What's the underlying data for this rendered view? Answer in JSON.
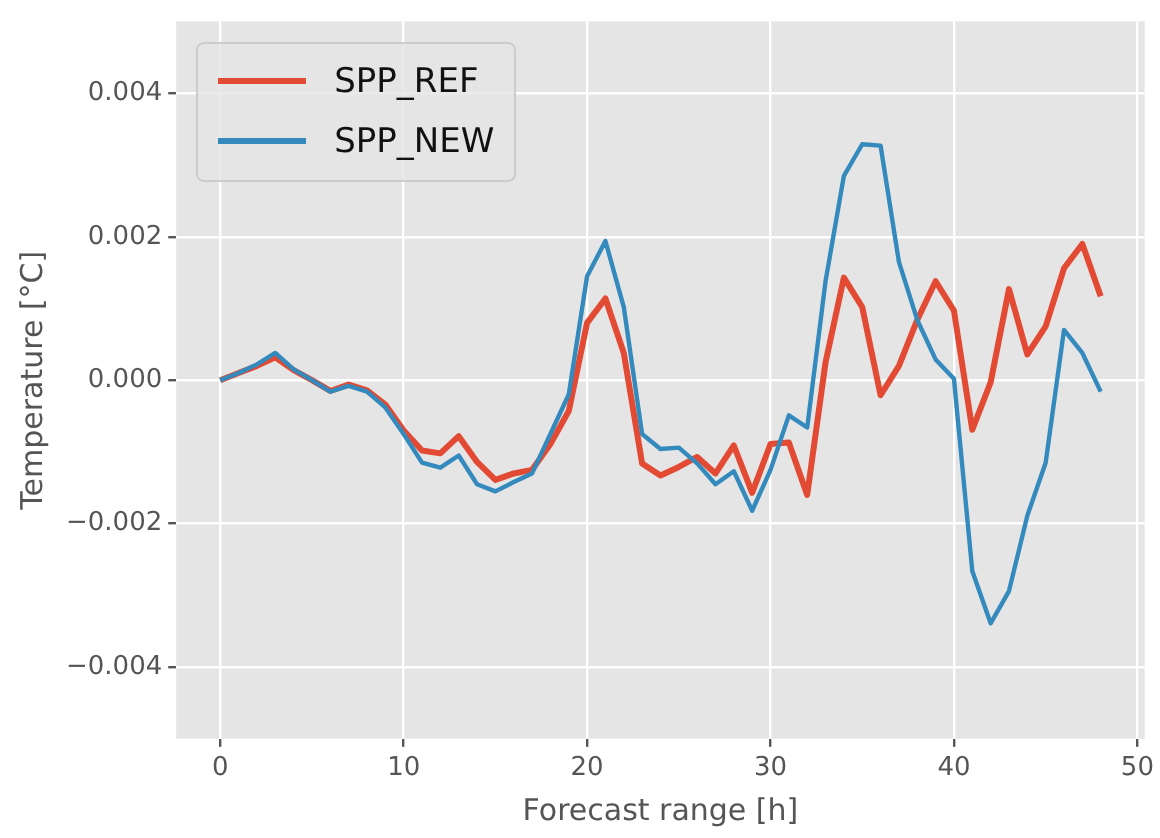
{
  "chart_data": {
    "type": "line",
    "xlabel": "Forecast range [h]",
    "ylabel": "Temperature [°C]",
    "x": [
      0,
      1,
      2,
      3,
      4,
      5,
      6,
      7,
      8,
      9,
      10,
      11,
      12,
      13,
      14,
      15,
      16,
      17,
      18,
      19,
      20,
      21,
      22,
      23,
      24,
      25,
      26,
      27,
      28,
      29,
      30,
      31,
      32,
      33,
      34,
      35,
      36,
      37,
      38,
      39,
      40,
      41,
      42,
      43,
      44,
      45,
      46,
      47,
      48
    ],
    "series": [
      {
        "name": "SPP_REF",
        "color": "#e24a33",
        "values": [
          0,
          0.0001,
          0.0002,
          0.00032,
          0.00014,
          0,
          -0.00015,
          -6e-05,
          -0.00014,
          -0.00034,
          -0.0007,
          -0.00098,
          -0.00102,
          -0.00078,
          -0.00114,
          -0.00139,
          -0.0013,
          -0.00125,
          -0.00089,
          -0.00043,
          0.0008,
          0.00114,
          0.00038,
          -0.00116,
          -0.00133,
          -0.00121,
          -0.00107,
          -0.0013,
          -0.00091,
          -0.00157,
          -0.00089,
          -0.00087,
          -0.0016,
          0.00025,
          0.00143,
          0.00102,
          -0.00021,
          0.0002,
          0.00084,
          0.00138,
          0.00097,
          -0.00069,
          -3e-05,
          0.00127,
          0.00036,
          0.00075,
          0.00156,
          0.0019,
          0.00117
        ]
      },
      {
        "name": "SPP_NEW",
        "color": "#348abd",
        "values": [
          0,
          0.0001,
          0.00022,
          0.00038,
          0.00015,
          0,
          -0.00016,
          -8e-05,
          -0.00016,
          -0.00038,
          -0.00075,
          -0.00115,
          -0.00122,
          -0.00105,
          -0.00145,
          -0.00155,
          -0.00142,
          -0.0013,
          -0.00075,
          -0.0002,
          0.00145,
          0.00194,
          0.00102,
          -0.00075,
          -0.00096,
          -0.00094,
          -0.00116,
          -0.00145,
          -0.00127,
          -0.00182,
          -0.00125,
          -0.00049,
          -0.00066,
          0.00138,
          0.00285,
          0.00329,
          0.00327,
          0.00165,
          0.00084,
          0.00029,
          2e-05,
          -0.00266,
          -0.00339,
          -0.00294,
          -0.00189,
          -0.00115,
          0.0007,
          0.00038,
          -0.00016
        ]
      }
    ],
    "xlim": [
      -2.4,
      50.4
    ],
    "xticks": [
      0,
      10,
      20,
      30,
      40,
      50
    ],
    "ylim": [
      -0.005,
      0.005
    ],
    "yticks": [
      {
        "value": -0.004,
        "label": "−0.004"
      },
      {
        "value": -0.002,
        "label": "−0.002"
      },
      {
        "value": 0,
        "label": "0.000"
      },
      {
        "value": 0.002,
        "label": "0.002"
      },
      {
        "value": 0.004,
        "label": "0.004"
      }
    ],
    "grid": true,
    "legend": "top left",
    "marker": "none",
    "line_style": "solid"
  }
}
